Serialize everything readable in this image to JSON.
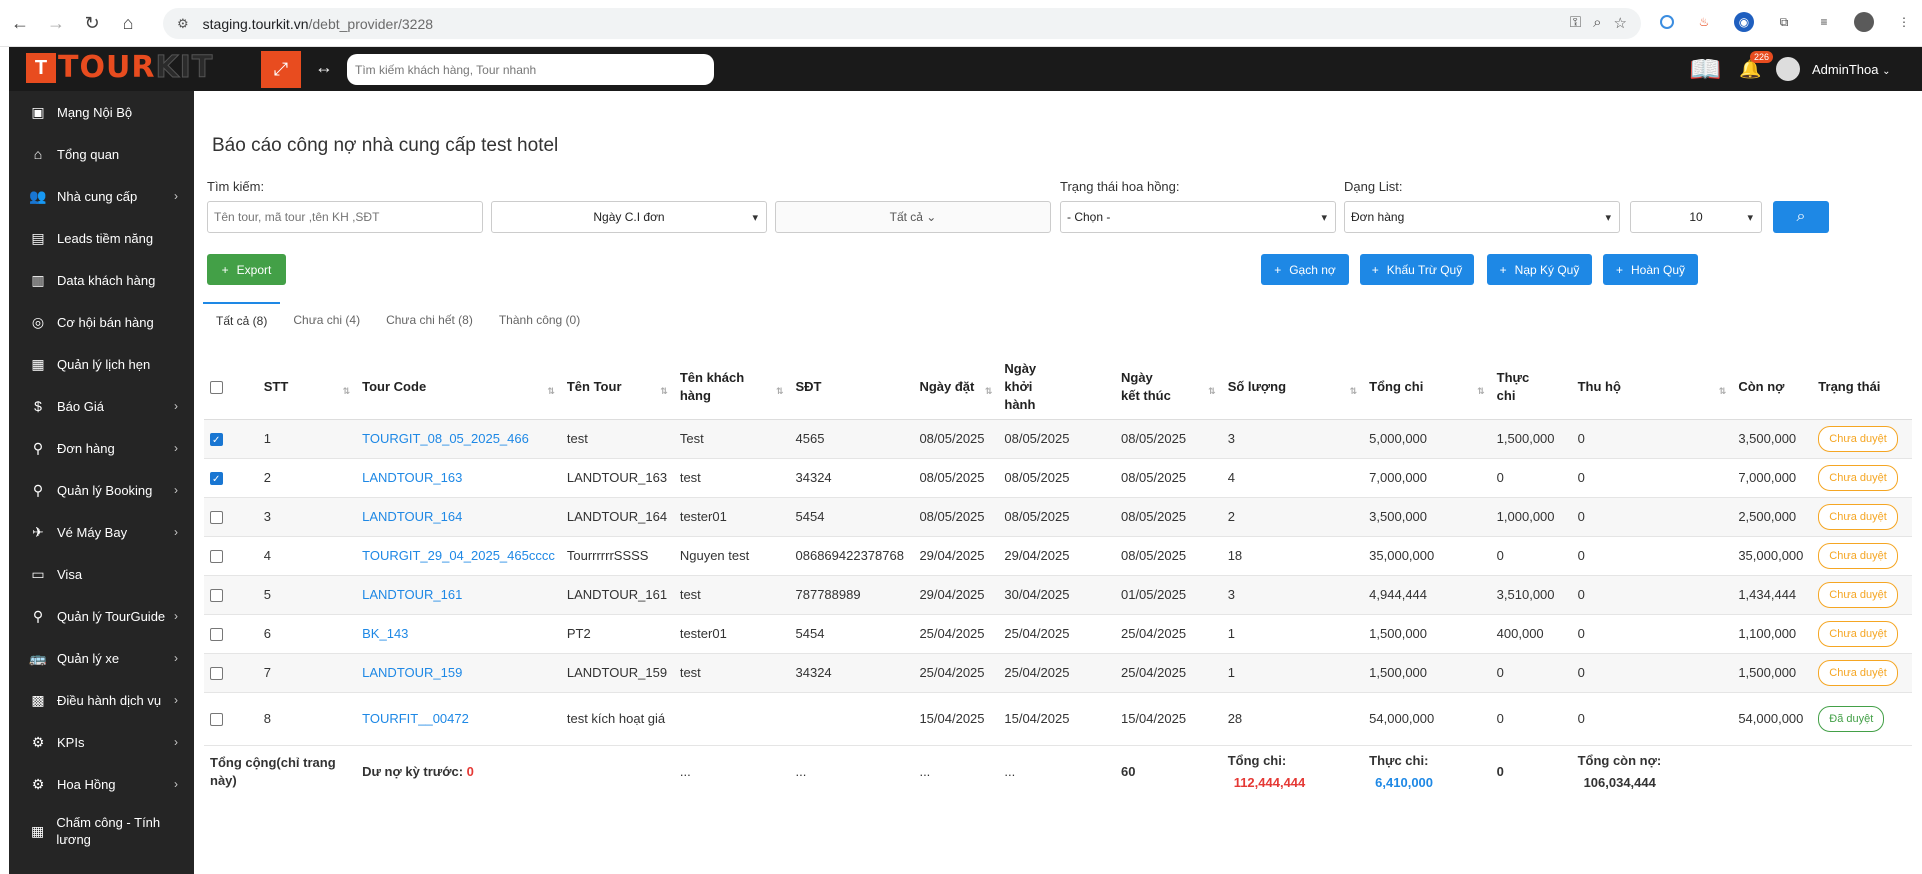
{
  "browser": {
    "url_host": "staging.tourkit.vn",
    "url_path": "/debt_provider/3228"
  },
  "header": {
    "logo_text_tour": "TOUR",
    "logo_text_kit": "KIT",
    "search_placeholder": "Tìm kiếm khách hàng, Tour nhanh",
    "notification_count": "226",
    "user_name": "AdminThoa"
  },
  "sidebar": {
    "items": [
      {
        "label": "Mạng Nội Bộ",
        "icon": "network-icon",
        "glyph": "▣",
        "chevron": false
      },
      {
        "label": "Tổng quan",
        "icon": "home-icon",
        "glyph": "⌂",
        "chevron": false
      },
      {
        "label": "Nhà cung cấp",
        "icon": "users-icon",
        "glyph": "👥",
        "chevron": true
      },
      {
        "label": "Leads tiềm năng",
        "icon": "leads-icon",
        "glyph": "▤",
        "chevron": false
      },
      {
        "label": "Data khách hàng",
        "icon": "data-icon",
        "glyph": "▥",
        "chevron": false
      },
      {
        "label": "Cơ hội bán hàng",
        "icon": "opportunity-icon",
        "glyph": "◎",
        "chevron": false
      },
      {
        "label": "Quản lý lịch hẹn",
        "icon": "calendar-icon",
        "glyph": "▦",
        "chevron": false
      },
      {
        "label": "Báo Giá",
        "icon": "quote-icon",
        "glyph": "$",
        "chevron": true
      },
      {
        "label": "Đơn hàng",
        "icon": "order-icon",
        "glyph": "⚲",
        "chevron": true
      },
      {
        "label": "Quản lý Booking",
        "icon": "booking-icon",
        "glyph": "⚲",
        "chevron": true
      },
      {
        "label": "Vé Máy Bay",
        "icon": "plane-icon",
        "glyph": "✈",
        "chevron": true
      },
      {
        "label": "Visa",
        "icon": "visa-icon",
        "glyph": "▭",
        "chevron": false
      },
      {
        "label": "Quản lý TourGuide",
        "icon": "guide-icon",
        "glyph": "⚲",
        "chevron": true
      },
      {
        "label": "Quản lý xe",
        "icon": "bus-icon",
        "glyph": "🚌",
        "chevron": true
      },
      {
        "label": "Điều hành dịch vụ",
        "icon": "operation-icon",
        "glyph": "▩",
        "chevron": true
      },
      {
        "label": "KPIs",
        "icon": "kpi-icon",
        "glyph": "⚙",
        "chevron": true
      },
      {
        "label": "Hoa Hồng",
        "icon": "commission-icon",
        "glyph": "⚙",
        "chevron": true
      },
      {
        "label": "Chấm công - Tính lương",
        "icon": "timesheet-icon",
        "glyph": "▦",
        "chevron": false
      }
    ]
  },
  "page": {
    "title": "Báo cáo công nợ nhà cung cấp test hotel",
    "filters": {
      "search_label": "Tìm kiếm:",
      "search_placeholder": "Tên tour, mã tour ,tên KH ,SĐT",
      "date_select": "Ngày C.I đơn",
      "all_select": "Tất cả ⌄",
      "commission_label": "Trạng thái hoa hồng:",
      "commission_select": "- Chọn -",
      "list_label": "Dạng List:",
      "list_select": "Đơn hàng",
      "page_size": "10"
    },
    "buttons": {
      "export": "Export",
      "gach_no": "Gạch nợ",
      "khau_tru": "Khấu Trừ Quỹ",
      "nap_quy": "Nạp Ký Quỹ",
      "hoan_quy": "Hoàn Quỹ"
    },
    "tabs": [
      "Tất cả (8)",
      "Chưa chi (4)",
      "Chưa chi hết (8)",
      "Thành công (0)"
    ]
  },
  "table": {
    "headers": [
      "STT",
      "Tour Code",
      "Tên Tour",
      "Tên khách hàng",
      "SĐT",
      "Ngày đặt",
      "Ngày khởi hành",
      "Ngày kết thúc",
      "Số lượng",
      "Tổng chi",
      "Thực chi",
      "Thu hộ",
      "Còn nợ",
      "Trạng thái"
    ],
    "rows": [
      {
        "checked": true,
        "stt": "1",
        "code": "TOURGIT_08_05_2025_466",
        "tour": "test",
        "customer": "Test",
        "phone": "4565",
        "booked": "08/05/2025",
        "start": "08/05/2025",
        "end": "08/05/2025",
        "qty": "3",
        "total": "5,000,000",
        "paid": "1,500,000",
        "collect": "0",
        "debt": "3,500,000",
        "status": "Chưa duyệt",
        "approved": false
      },
      {
        "checked": true,
        "stt": "2",
        "code": "LANDTOUR_163",
        "tour": "LANDTOUR_163",
        "customer": "test",
        "phone": "34324",
        "booked": "08/05/2025",
        "start": "08/05/2025",
        "end": "08/05/2025",
        "qty": "4",
        "total": "7,000,000",
        "paid": "0",
        "collect": "0",
        "debt": "7,000,000",
        "status": "Chưa duyệt",
        "approved": false
      },
      {
        "checked": false,
        "stt": "3",
        "code": "LANDTOUR_164",
        "tour": "LANDTOUR_164",
        "customer": "tester01",
        "phone": "5454",
        "booked": "08/05/2025",
        "start": "08/05/2025",
        "end": "08/05/2025",
        "qty": "2",
        "total": "3,500,000",
        "paid": "1,000,000",
        "collect": "0",
        "debt": "2,500,000",
        "status": "Chưa duyệt",
        "approved": false
      },
      {
        "checked": false,
        "stt": "4",
        "code": "TOURGIT_29_04_2025_465cccc",
        "tour": "TourrrrrrSSSS",
        "customer": "Nguyen test",
        "phone": "086869422378768",
        "booked": "29/04/2025",
        "start": "29/04/2025",
        "end": "08/05/2025",
        "qty": "18",
        "total": "35,000,000",
        "paid": "0",
        "collect": "0",
        "debt": "35,000,000",
        "status": "Chưa duyệt",
        "approved": false
      },
      {
        "checked": false,
        "stt": "5",
        "code": "LANDTOUR_161",
        "tour": "LANDTOUR_161",
        "customer": "test",
        "phone": "787788989",
        "booked": "29/04/2025",
        "start": "30/04/2025",
        "end": "01/05/2025",
        "qty": "3",
        "total": "4,944,444",
        "paid": "3,510,000",
        "collect": "0",
        "debt": "1,434,444",
        "status": "Chưa duyệt",
        "approved": false
      },
      {
        "checked": false,
        "stt": "6",
        "code": "BK_143",
        "tour": "PT2",
        "customer": "tester01",
        "phone": "5454",
        "booked": "25/04/2025",
        "start": "25/04/2025",
        "end": "25/04/2025",
        "qty": "1",
        "total": "1,500,000",
        "paid": "400,000",
        "collect": "0",
        "debt": "1,100,000",
        "status": "Chưa duyệt",
        "approved": false
      },
      {
        "checked": false,
        "stt": "7",
        "code": "LANDTOUR_159",
        "tour": "LANDTOUR_159",
        "customer": "test",
        "phone": "34324",
        "booked": "25/04/2025",
        "start": "25/04/2025",
        "end": "25/04/2025",
        "qty": "1",
        "total": "1,500,000",
        "paid": "0",
        "collect": "0",
        "debt": "1,500,000",
        "status": "Chưa duyệt",
        "approved": false
      },
      {
        "checked": false,
        "stt": "8",
        "code": "TOURFIT__00472",
        "tour": "test kích hoạt giá",
        "customer": "",
        "phone": "",
        "booked": "15/04/2025",
        "start": "15/04/2025",
        "end": "15/04/2025",
        "qty": "28",
        "total": "54,000,000",
        "paid": "0",
        "collect": "0",
        "debt": "54,000,000",
        "status": "Đã duyệt",
        "approved": true
      }
    ],
    "footer": {
      "total_label": "Tổng cộng(chỉ trang này)",
      "prev_debt_label": "Dư nợ kỳ trước:",
      "prev_debt_value": "0",
      "dots": "...",
      "qty_total": "60",
      "total_chi_label": "Tổng chi:",
      "total_chi_value": "112,444,444",
      "thuc_chi_label": "Thực chi:",
      "thuc_chi_value": "6,410,000",
      "thu_ho_value": "0",
      "con_no_label": "Tổng còn nợ:",
      "con_no_value": "106,034,444"
    }
  }
}
